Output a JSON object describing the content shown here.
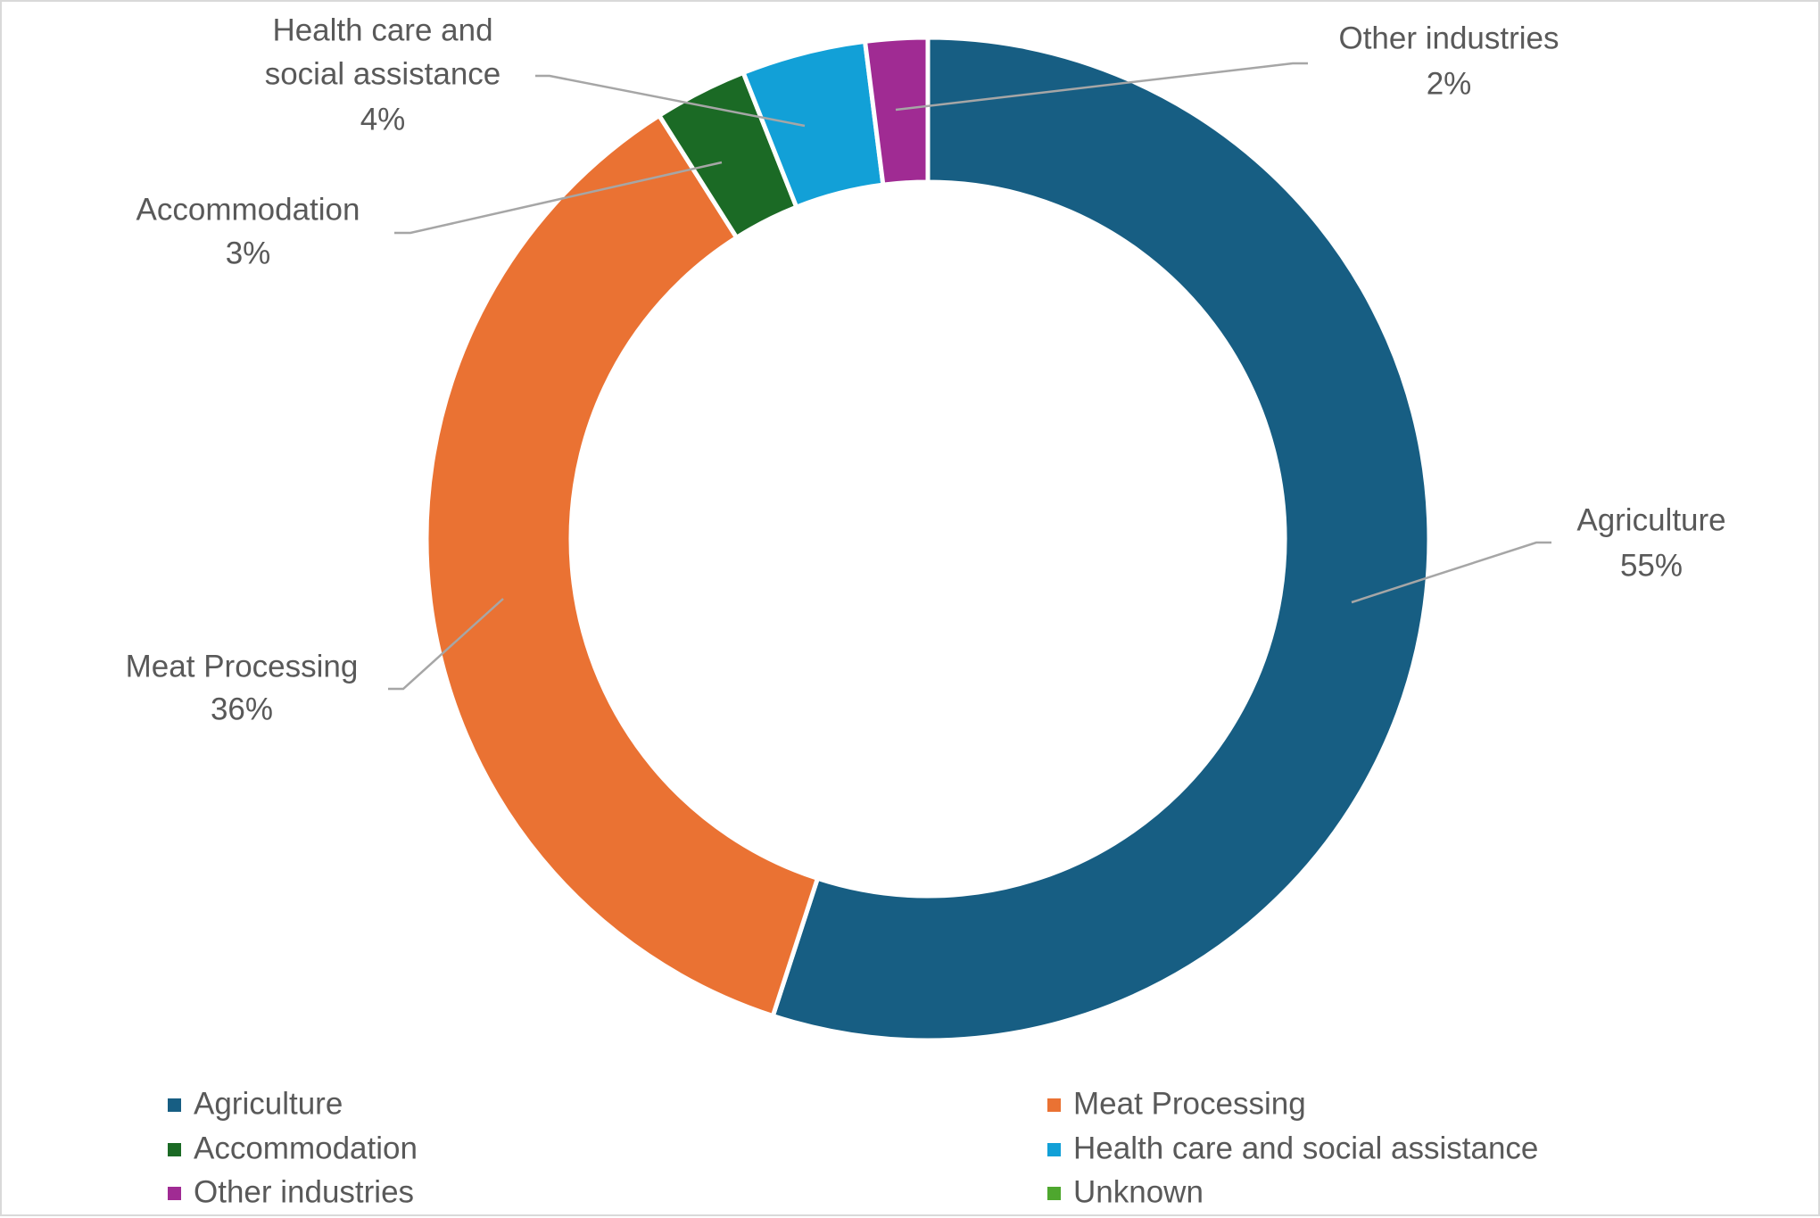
{
  "chart_data": {
    "type": "pie",
    "subtype": "donut",
    "title": "",
    "categories": [
      "Agriculture",
      "Meat Processing",
      "Accommodation",
      "Health care and social assistance",
      "Other industries",
      "Unknown"
    ],
    "values": [
      55,
      36,
      3,
      4,
      2,
      0
    ],
    "data_labels": [
      "55%",
      "36%",
      "3%",
      "4%",
      "2%",
      ""
    ],
    "colors": [
      "#175E83",
      "#EA7233",
      "#1B6A25",
      "#12A0D7",
      "#A02B93",
      "#4EA72E"
    ],
    "legend": {
      "placement": "bottom",
      "entries": [
        "Agriculture",
        "Meat Processing",
        "Accommodation",
        "Health care and social assistance",
        "Other industries",
        "Unknown"
      ]
    },
    "label_lines": [
      "Agriculture",
      "Meat Processing",
      "Accommodation",
      [
        "Health care and",
        "social assistance"
      ],
      "Other industries"
    ]
  }
}
